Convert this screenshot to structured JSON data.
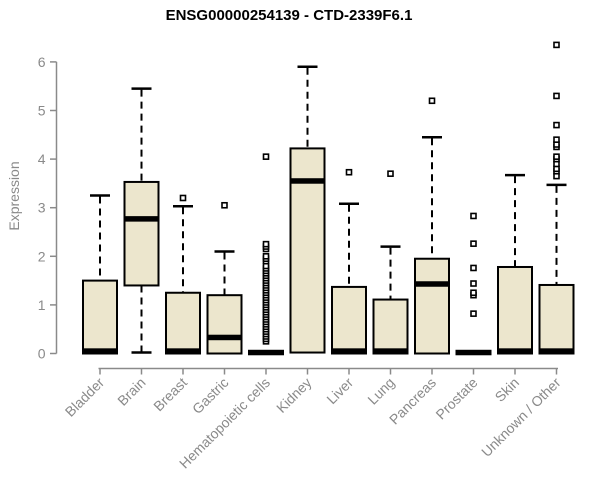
{
  "chart_data": {
    "type": "boxplot",
    "title": "ENSG00000254139 - CTD-2339F6.1",
    "ylabel": "Expression",
    "xlabel": "",
    "ylim": [
      0,
      6.5
    ],
    "yticks": [
      0,
      1,
      2,
      3,
      4,
      5,
      6
    ],
    "grid": false,
    "legend": "none",
    "categories": [
      "Bladder",
      "Brain",
      "Breast",
      "Gastric",
      "Hematopoietic cells",
      "Kidney",
      "Liver",
      "Lung",
      "Pancreas",
      "Prostate",
      "Skin",
      "Unknown / Other"
    ],
    "boxes": [
      {
        "name": "Bladder",
        "low": 0,
        "q1": 0,
        "median": 0.05,
        "q3": 1.5,
        "high": 3.25,
        "outliers": []
      },
      {
        "name": "Brain",
        "low": 0.02,
        "q1": 1.4,
        "median": 2.77,
        "q3": 3.53,
        "high": 5.45,
        "outliers": []
      },
      {
        "name": "Breast",
        "low": 0,
        "q1": 0,
        "median": 0.05,
        "q3": 1.25,
        "high": 3.03,
        "outliers": [
          3.2
        ]
      },
      {
        "name": "Gastric",
        "low": 0,
        "q1": 0,
        "median": 0.33,
        "q3": 1.2,
        "high": 2.1,
        "outliers": [
          3.05
        ]
      },
      {
        "name": "Hematopoietic cells",
        "low": 0,
        "q1": 0,
        "median": 0.02,
        "q3": 0.05,
        "high": 0.06,
        "outliers": [
          0.25,
          0.3,
          0.35,
          0.4,
          0.45,
          0.5,
          0.55,
          0.6,
          0.65,
          0.7,
          0.75,
          0.8,
          0.85,
          0.9,
          0.95,
          1.0,
          1.05,
          1.1,
          1.15,
          1.2,
          1.25,
          1.3,
          1.35,
          1.4,
          1.45,
          1.5,
          1.55,
          1.6,
          1.65,
          1.7,
          1.75,
          1.8,
          1.9,
          1.95,
          2.0,
          2.15,
          2.2,
          2.25,
          4.05
        ]
      },
      {
        "name": "Kidney",
        "low": 0,
        "q1": 0.02,
        "median": 3.55,
        "q3": 4.22,
        "high": 5.9,
        "outliers": []
      },
      {
        "name": "Liver",
        "low": 0,
        "q1": 0,
        "median": 0.05,
        "q3": 1.37,
        "high": 3.08,
        "outliers": [
          3.73
        ]
      },
      {
        "name": "Lung",
        "low": 0,
        "q1": 0,
        "median": 0.05,
        "q3": 1.11,
        "high": 2.2,
        "outliers": [
          3.7
        ]
      },
      {
        "name": "Pancreas",
        "low": 0,
        "q1": 0,
        "median": 1.43,
        "q3": 1.95,
        "high": 4.45,
        "outliers": [
          5.2
        ]
      },
      {
        "name": "Prostate",
        "low": 0,
        "q1": 0,
        "median": 0.02,
        "q3": 0.04,
        "high": 0.05,
        "outliers": [
          0.82,
          1.2,
          1.25,
          1.44,
          1.76,
          2.26,
          2.83
        ]
      },
      {
        "name": "Skin",
        "low": 0,
        "q1": 0,
        "median": 0.05,
        "q3": 1.78,
        "high": 3.67,
        "outliers": []
      },
      {
        "name": "Unknown / Other",
        "low": 0,
        "q1": 0,
        "median": 0.05,
        "q3": 1.41,
        "high": 3.47,
        "outliers": [
          3.65,
          3.75,
          3.8,
          3.9,
          4.0,
          4.05,
          4.25,
          4.3,
          4.4,
          4.7,
          5.3,
          6.35
        ]
      }
    ],
    "colors": {
      "box_fill": "#ECE6CD",
      "box_stroke": "#000000",
      "median": "#000000",
      "whisker": "#000000",
      "outlier_fill": "#ffffff",
      "axis": "#8a8a8a",
      "label": "#8a8a8a",
      "title": "#000000",
      "background": "#ffffff"
    }
  }
}
